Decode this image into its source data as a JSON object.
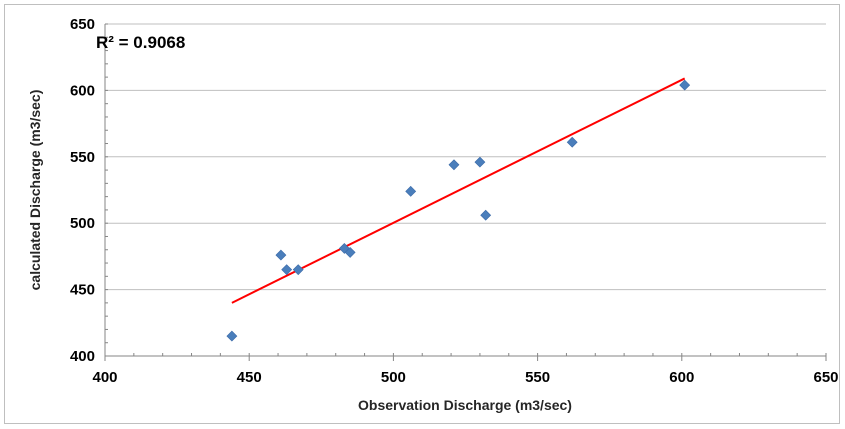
{
  "chart_data": {
    "type": "scatter",
    "title": "",
    "xlabel": "Observation Discharge (m3/sec)",
    "ylabel": "calculated Discharge (m3/sec)",
    "xlim": [
      400,
      650
    ],
    "ylim": [
      400,
      650
    ],
    "x_ticks": [
      400,
      450,
      500,
      550,
      600,
      650
    ],
    "y_ticks": [
      400,
      450,
      500,
      550,
      600,
      650
    ],
    "x_tick_labels": [
      "400",
      "450",
      "500",
      "550",
      "600",
      "650"
    ],
    "y_tick_labels": [
      "400",
      "450",
      "500",
      "550",
      "600",
      "650"
    ],
    "grid": "horizontal major gridlines",
    "legend": "none",
    "annotation": "R² = 0.9068",
    "series": [
      {
        "points": [
          {
            "x": 444,
            "y": 415
          },
          {
            "x": 461,
            "y": 476
          },
          {
            "x": 463,
            "y": 465
          },
          {
            "x": 467,
            "y": 465
          },
          {
            "x": 483,
            "y": 481
          },
          {
            "x": 485,
            "y": 478
          },
          {
            "x": 506,
            "y": 524
          },
          {
            "x": 521,
            "y": 544
          },
          {
            "x": 530,
            "y": 546
          },
          {
            "x": 532,
            "y": 506
          },
          {
            "x": 562,
            "y": 561
          },
          {
            "x": 601,
            "y": 604
          }
        ],
        "marker": "diamond",
        "color": "#4a7ebb"
      }
    ],
    "trendline": {
      "type": "linear",
      "x": [
        444,
        601
      ],
      "y": [
        440,
        609
      ],
      "color": "#ff0000"
    },
    "colors": {
      "grid": "#bfbfbf",
      "axis": "#868686",
      "marker": "#4a7ebb",
      "trendline": "#ff0000"
    }
  }
}
